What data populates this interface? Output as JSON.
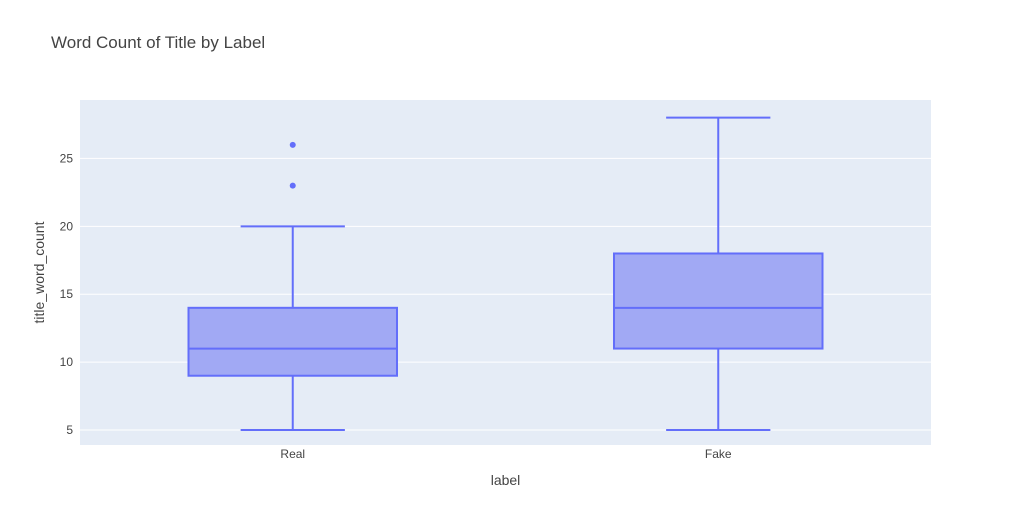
{
  "chart_data": {
    "type": "box",
    "title": "Word Count of Title by Label",
    "xlabel": "label",
    "ylabel": "title_word_count",
    "categories": [
      "Real",
      "Fake"
    ],
    "ylim": [
      3.9,
      29.3
    ],
    "yticks": [
      5,
      10,
      15,
      20,
      25
    ],
    "grid": true,
    "legend": "none",
    "colors": {
      "plot_bg": "#e5ecf6",
      "box_fill": "#a1a9f4",
      "box_line": "#636efa",
      "grid": "#ffffff",
      "text": "#444444"
    },
    "boxes": [
      {
        "category": "Real",
        "min": 5,
        "q1": 9,
        "median": 11,
        "q3": 14,
        "max": 20,
        "outliers": [
          23,
          26
        ]
      },
      {
        "category": "Fake",
        "min": 5,
        "q1": 11,
        "median": 14,
        "q3": 18,
        "max": 28,
        "outliers": []
      }
    ]
  }
}
